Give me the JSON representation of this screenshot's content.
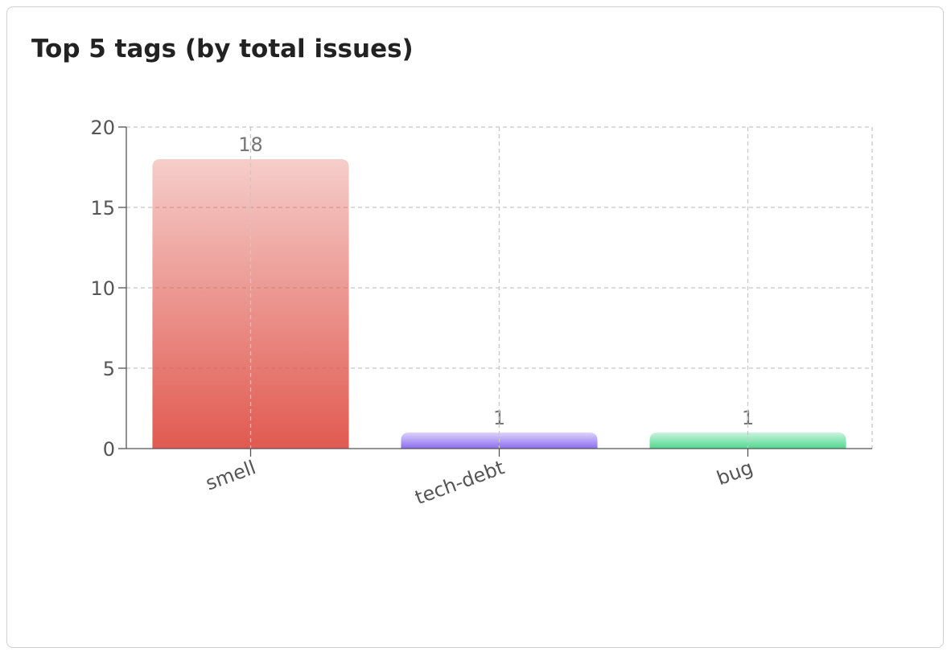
{
  "chart_data": {
    "type": "bar",
    "title": "Top 5 tags (by total issues)",
    "categories": [
      "smell",
      "tech-debt",
      "bug"
    ],
    "values": [
      18,
      1,
      1
    ],
    "colors": [
      "#e05a50",
      "#8b6cf0",
      "#4fd88f"
    ],
    "ylim": [
      0,
      20
    ],
    "yticks": [
      0,
      5,
      10,
      15,
      20
    ],
    "grid": true
  }
}
